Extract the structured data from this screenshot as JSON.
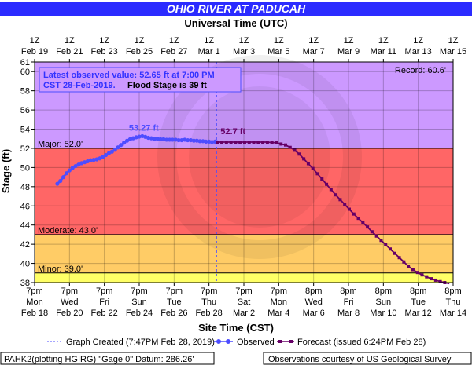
{
  "chart_data": {
    "type": "line",
    "title": "OHIO RIVER AT PADUCAH",
    "top_axis_label": "Universal Time (UTC)",
    "xlabel": "Site Time (CST)",
    "ylabel": "Stage (ft)",
    "ylim": [
      38,
      61
    ],
    "y_ticks": [
      38,
      40,
      42,
      44,
      46,
      48,
      50,
      52,
      54,
      56,
      58,
      60,
      61
    ],
    "x_range_hours": [
      0,
      552
    ],
    "top_ticks": [
      {
        "l1": "1Z",
        "l2": "Feb 19"
      },
      {
        "l1": "1Z",
        "l2": "Feb 21"
      },
      {
        "l1": "1Z",
        "l2": "Feb 23"
      },
      {
        "l1": "1Z",
        "l2": "Feb 25"
      },
      {
        "l1": "1Z",
        "l2": "Feb 27"
      },
      {
        "l1": "1Z",
        "l2": "Mar 1"
      },
      {
        "l1": "1Z",
        "l2": "Mar 3"
      },
      {
        "l1": "1Z",
        "l2": "Mar 5"
      },
      {
        "l1": "1Z",
        "l2": "Mar 7"
      },
      {
        "l1": "1Z",
        "l2": "Mar 9"
      },
      {
        "l1": "1Z",
        "l2": "Mar 11"
      },
      {
        "l1": "1Z",
        "l2": "Mar 13"
      },
      {
        "l1": "1Z",
        "l2": "Mar 15"
      }
    ],
    "bottom_ticks": [
      {
        "l1": "7pm",
        "l2": "Mon",
        "l3": "Feb 18"
      },
      {
        "l1": "7pm",
        "l2": "Wed",
        "l3": "Feb 20"
      },
      {
        "l1": "7pm",
        "l2": "Fri",
        "l3": "Feb 22"
      },
      {
        "l1": "7pm",
        "l2": "Sun",
        "l3": "Feb 24"
      },
      {
        "l1": "7pm",
        "l2": "Tue",
        "l3": "Feb 26"
      },
      {
        "l1": "7pm",
        "l2": "Thu",
        "l3": "Feb 28"
      },
      {
        "l1": "7pm",
        "l2": "Sat",
        "l3": "Mar 2"
      },
      {
        "l1": "7pm",
        "l2": "Mon",
        "l3": "Mar 4"
      },
      {
        "l1": "8pm",
        "l2": "Wed",
        "l3": "Mar 6"
      },
      {
        "l1": "8pm",
        "l2": "Fri",
        "l3": "Mar 8"
      },
      {
        "l1": "8pm",
        "l2": "Sun",
        "l3": "Mar 10"
      },
      {
        "l1": "8pm",
        "l2": "Tue",
        "l3": "Mar 12"
      },
      {
        "l1": "8pm",
        "l2": "Thu",
        "l3": "Mar 14"
      }
    ],
    "stage_bands": [
      {
        "label": "Minor: 39.0'",
        "from": 38,
        "to": 39,
        "color": "#ffff66",
        "line": 39
      },
      {
        "label": "",
        "from": 39,
        "to": 43,
        "color": "#ffcc66"
      },
      {
        "label": "Moderate: 43.0'",
        "from": 43,
        "to": 52,
        "color": "#ff6666",
        "line": 43
      },
      {
        "label": "Major: 52.0'",
        "from": 52,
        "to": 61,
        "color": "#cc99ff",
        "line": 52
      }
    ],
    "record": {
      "label": "Record: 60.6'",
      "value": 60.6
    },
    "latest_box": {
      "line1": "Latest observed value: 52.65 ft at 7:00 PM",
      "line2a": "CST 28-Feb-2019.",
      "line2b": " Flood Stage is 39 ft"
    },
    "now_hour": 240,
    "peak_label": "53.27 ft",
    "latest_label": "52.7 ft",
    "series": [
      {
        "name": "Observed",
        "color": "#4d4dff",
        "x_hours": [
          30,
          34,
          38,
          42,
          46,
          50,
          54,
          58,
          62,
          66,
          70,
          74,
          78,
          82,
          86,
          90,
          94,
          98,
          102,
          106,
          110,
          114,
          118,
          122,
          126,
          130,
          134,
          138,
          142,
          146,
          150,
          154,
          158,
          162,
          166,
          170,
          174,
          178,
          182,
          186,
          190,
          194,
          198,
          202,
          206,
          210,
          214,
          218,
          222,
          226,
          230,
          234,
          238,
          240
        ],
        "values": [
          48.3,
          48.6,
          49.0,
          49.4,
          49.7,
          49.95,
          50.15,
          50.3,
          50.45,
          50.55,
          50.65,
          50.75,
          50.8,
          50.85,
          50.95,
          51.1,
          51.3,
          51.5,
          51.65,
          51.85,
          52.1,
          52.35,
          52.6,
          52.8,
          52.95,
          53.05,
          53.15,
          53.22,
          53.27,
          53.2,
          53.1,
          53.05,
          53.0,
          53.0,
          52.95,
          52.95,
          52.9,
          52.9,
          52.9,
          52.9,
          52.85,
          52.85,
          52.9,
          52.85,
          52.85,
          52.8,
          52.8,
          52.75,
          52.75,
          52.7,
          52.7,
          52.65,
          52.7,
          52.65
        ]
      },
      {
        "name": "Forecast",
        "color": "#660066",
        "x_hours": [
          241,
          247,
          253,
          259,
          265,
          271,
          277,
          283,
          289,
          295,
          301,
          307,
          313,
          319,
          325,
          331,
          337,
          343,
          349,
          355,
          361,
          367,
          373,
          379,
          385,
          391,
          397,
          403,
          409,
          415,
          421,
          427,
          433,
          439,
          445,
          451,
          457,
          463,
          469,
          475,
          481,
          487,
          493,
          499,
          505,
          511,
          517,
          523,
          529,
          535,
          541,
          547
        ],
        "values": [
          52.65,
          52.65,
          52.65,
          52.65,
          52.65,
          52.65,
          52.65,
          52.65,
          52.65,
          52.65,
          52.65,
          52.65,
          52.6,
          52.6,
          52.45,
          52.35,
          52.1,
          51.8,
          51.4,
          50.9,
          50.4,
          49.9,
          49.35,
          48.8,
          48.25,
          47.7,
          47.15,
          46.65,
          46.15,
          45.65,
          45.15,
          44.7,
          44.25,
          43.8,
          43.3,
          42.85,
          42.4,
          41.95,
          41.5,
          41.05,
          40.6,
          40.15,
          39.7,
          39.35,
          39.05,
          38.8,
          38.6,
          38.4,
          38.25,
          38.1,
          38.0,
          37.9
        ]
      }
    ],
    "legend": {
      "created": "Graph Created (7:47PM Feb 28, 2019)",
      "observed": "Observed",
      "forecast": "Forecast (issued 6:24PM Feb 28)"
    },
    "footer_left": "PAHK2(plotting HGIRG) \"Gage 0\" Datum: 286.26'",
    "footer_right": "Observations courtesy of US Geological Survey"
  }
}
